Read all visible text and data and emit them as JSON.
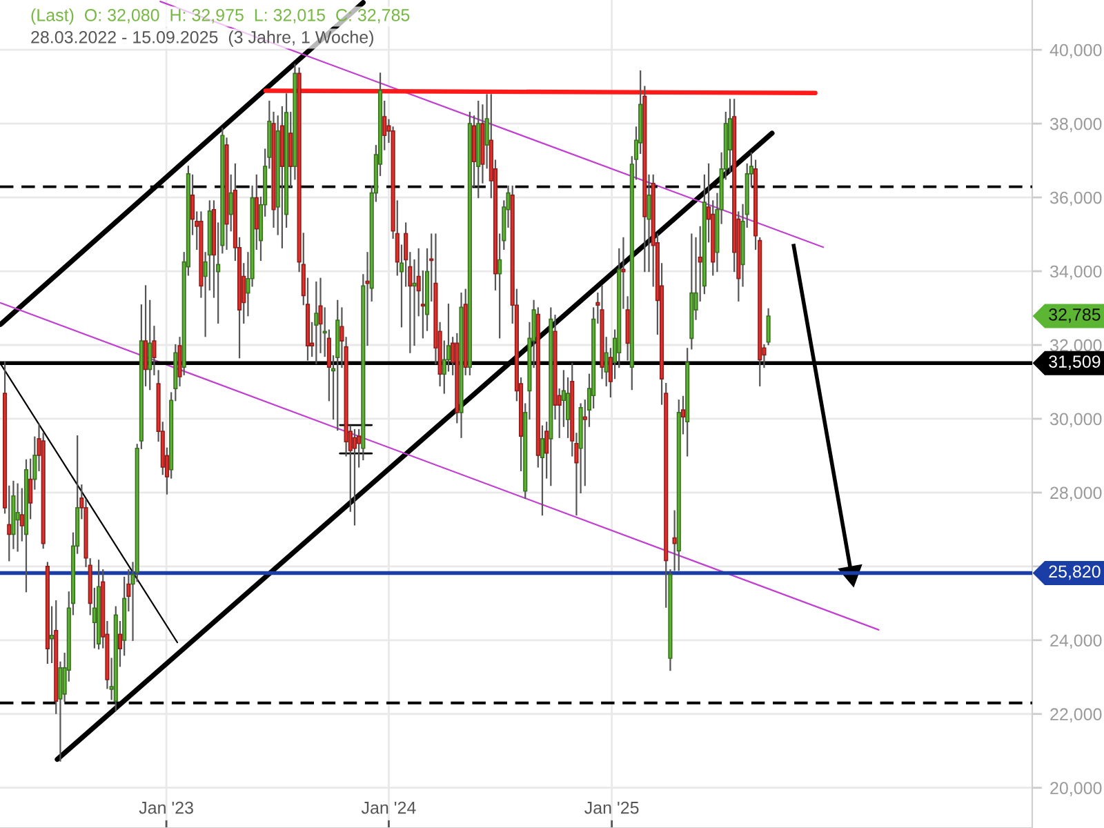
{
  "chart_data": {
    "type": "candlestick",
    "title": "(Last)  O: 32,080  H: 32,975  L: 32,015  C: 32,785",
    "subtitle": "28.03.2022 - 15.09.2025  (3 Jahre, 1 Woche)",
    "x": [
      "2022-04-11",
      "2022-04-18",
      "2022-04-25",
      "2022-05-02",
      "2022-05-09",
      "2022-05-16",
      "2022-05-23",
      "2022-05-30",
      "2022-06-06",
      "2022-06-13",
      "2022-06-20",
      "2022-06-27",
      "2022-07-04",
      "2022-07-11",
      "2022-07-18",
      "2022-07-25",
      "2022-08-01",
      "2022-08-08",
      "2022-08-15",
      "2022-08-22",
      "2022-08-29",
      "2022-09-05",
      "2022-09-12",
      "2022-09-19",
      "2022-09-26",
      "2022-10-03",
      "2022-10-10",
      "2022-10-17",
      "2022-10-24",
      "2022-10-31",
      "2022-11-07",
      "2022-11-14",
      "2022-11-21",
      "2022-11-28",
      "2022-12-05",
      "2022-12-12",
      "2022-12-19",
      "2022-12-26",
      "2023-01-02",
      "2023-01-09",
      "2023-01-16",
      "2023-01-23",
      "2023-01-30",
      "2023-02-06",
      "2023-02-13",
      "2023-02-20",
      "2023-02-27",
      "2023-03-06",
      "2023-03-13",
      "2023-03-20",
      "2023-03-27",
      "2023-04-03",
      "2023-04-10",
      "2023-04-17",
      "2023-04-24",
      "2023-05-01",
      "2023-05-08",
      "2023-05-15",
      "2023-05-22",
      "2023-05-29",
      "2023-06-05",
      "2023-06-12",
      "2023-06-19",
      "2023-06-26",
      "2023-07-03",
      "2023-07-10",
      "2023-07-17",
      "2023-07-24",
      "2023-07-31",
      "2023-08-07",
      "2023-08-14",
      "2023-08-21",
      "2023-08-28",
      "2023-09-04",
      "2023-09-11",
      "2023-09-18",
      "2023-09-25",
      "2023-10-02",
      "2023-10-09",
      "2023-10-16",
      "2023-10-23",
      "2023-10-30",
      "2023-11-06",
      "2023-11-13",
      "2023-11-20",
      "2023-11-27",
      "2023-12-04",
      "2023-12-11",
      "2023-12-18",
      "2023-12-25",
      "2024-01-01",
      "2024-01-08",
      "2024-01-15",
      "2024-01-22",
      "2024-01-29",
      "2024-02-05",
      "2024-02-12",
      "2024-02-19",
      "2024-02-26",
      "2024-03-04",
      "2024-03-11",
      "2024-03-18",
      "2024-03-25",
      "2024-04-01",
      "2024-04-08",
      "2024-04-15",
      "2024-04-22",
      "2024-04-29",
      "2024-05-06",
      "2024-05-13",
      "2024-05-20",
      "2024-05-27",
      "2024-06-03",
      "2024-06-10",
      "2024-06-17",
      "2024-06-24",
      "2024-07-01",
      "2024-07-08",
      "2024-07-15",
      "2024-07-22",
      "2024-07-29",
      "2024-08-05",
      "2024-08-12",
      "2024-08-19",
      "2024-08-26",
      "2024-09-02",
      "2024-09-09",
      "2024-09-16",
      "2024-09-23",
      "2024-09-30",
      "2024-10-07",
      "2024-10-14",
      "2024-10-21",
      "2024-10-28",
      "2024-11-04",
      "2024-11-11",
      "2024-11-18",
      "2024-11-25",
      "2024-12-02",
      "2024-12-09",
      "2024-12-16",
      "2024-12-23",
      "2024-12-30",
      "2025-01-06",
      "2025-01-13",
      "2025-01-20",
      "2025-01-27",
      "2025-02-03",
      "2025-02-10",
      "2025-02-17",
      "2025-02-24",
      "2025-03-03",
      "2025-03-10",
      "2025-03-17",
      "2025-03-24",
      "2025-03-31",
      "2025-04-07",
      "2025-04-14",
      "2025-04-21",
      "2025-04-28",
      "2025-05-05",
      "2025-05-12",
      "2025-05-19",
      "2025-05-26",
      "2025-06-02",
      "2025-06-09",
      "2025-06-16",
      "2025-06-23",
      "2025-06-30",
      "2025-07-07",
      "2025-07-14",
      "2025-07-21",
      "2025-07-28",
      "2025-08-04",
      "2025-08-11",
      "2025-08-18",
      "2025-08-25",
      "2025-09-01",
      "2025-09-08",
      "2025-09-15"
    ],
    "ohlc": [
      [
        30690,
        31530,
        27450,
        27590
      ],
      [
        27130,
        28170,
        26160,
        26870
      ],
      [
        26870,
        28300,
        26490,
        27910
      ],
      [
        27260,
        28230,
        26420,
        27460
      ],
      [
        27400,
        28100,
        26700,
        27100
      ],
      [
        26870,
        28880,
        25320,
        28620
      ],
      [
        28360,
        28900,
        27300,
        27720
      ],
      [
        28360,
        29500,
        28100,
        29010
      ],
      [
        29460,
        29850,
        28600,
        29010
      ],
      [
        29400,
        29600,
        26500,
        26620
      ],
      [
        26000,
        26100,
        23380,
        23770
      ],
      [
        24040,
        24900,
        23400,
        24130
      ],
      [
        24260,
        25060,
        22020,
        22350
      ],
      [
        22410,
        23400,
        20730,
        23250
      ],
      [
        22540,
        23640,
        22350,
        23250
      ],
      [
        23190,
        25300,
        22900,
        24870
      ],
      [
        25000,
        26900,
        24700,
        26550
      ],
      [
        26550,
        29530,
        26360,
        27590
      ],
      [
        27850,
        28200,
        27300,
        27590
      ],
      [
        27590,
        27800,
        26000,
        26230
      ],
      [
        26030,
        26200,
        24700,
        25000
      ],
      [
        24480,
        25400,
        23800,
        24870
      ],
      [
        23900,
        26160,
        23770,
        25450
      ],
      [
        25580,
        25900,
        23800,
        24090
      ],
      [
        24160,
        24500,
        22700,
        22930
      ],
      [
        22670,
        23500,
        22400,
        22740
      ],
      [
        22350,
        24900,
        22100,
        24680
      ],
      [
        24160,
        24500,
        23300,
        23770
      ],
      [
        24000,
        25700,
        23600,
        25130
      ],
      [
        25520,
        25900,
        24800,
        25190
      ],
      [
        25520,
        26100,
        24000,
        25780
      ],
      [
        25840,
        29300,
        25600,
        29200
      ],
      [
        29400,
        33080,
        29200,
        32110
      ],
      [
        32110,
        33600,
        30900,
        31340
      ],
      [
        31340,
        33200,
        30800,
        32050
      ],
      [
        32110,
        32500,
        31200,
        31660
      ],
      [
        30950,
        31300,
        29400,
        29660
      ],
      [
        29660,
        29900,
        28500,
        28690
      ],
      [
        29000,
        29200,
        27970,
        28430
      ],
      [
        28620,
        30700,
        28400,
        30500
      ],
      [
        30820,
        32000,
        30500,
        31790
      ],
      [
        31980,
        32200,
        30900,
        31140
      ],
      [
        31400,
        34500,
        31200,
        34250
      ],
      [
        34120,
        36840,
        33900,
        36640
      ],
      [
        36060,
        36600,
        35000,
        35410
      ],
      [
        35350,
        35600,
        34600,
        35220
      ],
      [
        35350,
        35600,
        33300,
        33600
      ],
      [
        33860,
        34500,
        32240,
        34250
      ],
      [
        34440,
        35900,
        33500,
        35630
      ],
      [
        35670,
        35900,
        33300,
        34440
      ],
      [
        33990,
        35300,
        32600,
        34180
      ],
      [
        34700,
        37870,
        34500,
        37680
      ],
      [
        37420,
        37600,
        34600,
        35280
      ],
      [
        35540,
        36600,
        35100,
        36120
      ],
      [
        36190,
        36900,
        34300,
        34640
      ],
      [
        34640,
        34900,
        31660,
        32950
      ],
      [
        33860,
        34200,
        32600,
        33150
      ],
      [
        33410,
        34500,
        32800,
        33800
      ],
      [
        33800,
        36300,
        33600,
        35990
      ],
      [
        35990,
        36600,
        34600,
        35150
      ],
      [
        34830,
        36000,
        34300,
        35800
      ],
      [
        35800,
        37300,
        35500,
        36840
      ],
      [
        37090,
        38600,
        36800,
        38060
      ],
      [
        38000,
        38300,
        35200,
        35670
      ],
      [
        35740,
        38200,
        35000,
        37800
      ],
      [
        37940,
        38450,
        34640,
        36840
      ],
      [
        35540,
        38800,
        35200,
        38300
      ],
      [
        37740,
        38300,
        36300,
        36840
      ],
      [
        36840,
        39600,
        36500,
        39360
      ],
      [
        39360,
        39500,
        34000,
        34250
      ],
      [
        34180,
        35020,
        33100,
        33340
      ],
      [
        33100,
        33800,
        31600,
        31980
      ],
      [
        32050,
        32600,
        31700,
        31980
      ],
      [
        32540,
        33700,
        31500,
        32860
      ],
      [
        33060,
        33800,
        31800,
        32570
      ],
      [
        32330,
        33000,
        31700,
        32370
      ],
      [
        32180,
        32400,
        30500,
        31400
      ],
      [
        31300,
        31700,
        30000,
        31360
      ],
      [
        31660,
        33200,
        29700,
        32670
      ],
      [
        32500,
        33000,
        31400,
        32110
      ],
      [
        31950,
        32200,
        29000,
        29380
      ],
      [
        29660,
        29800,
        27500,
        29140
      ],
      [
        29490,
        29700,
        27130,
        29200
      ],
      [
        29530,
        29700,
        28700,
        29330
      ],
      [
        29200,
        33900,
        28900,
        33600
      ],
      [
        33730,
        34500,
        32000,
        33670
      ],
      [
        33540,
        36300,
        33200,
        36120
      ],
      [
        36120,
        37400,
        35900,
        37160
      ],
      [
        36900,
        39360,
        36600,
        38900
      ],
      [
        38190,
        38600,
        37300,
        37680
      ],
      [
        37940,
        38100,
        37500,
        37800
      ],
      [
        37800,
        37900,
        34900,
        35090
      ],
      [
        35020,
        35900,
        33900,
        34250
      ],
      [
        33990,
        34700,
        32500,
        34220
      ],
      [
        35020,
        35300,
        33600,
        34310
      ],
      [
        34120,
        34500,
        31800,
        33600
      ],
      [
        33600,
        34300,
        32000,
        33670
      ],
      [
        33860,
        34600,
        32800,
        33470
      ],
      [
        33100,
        34000,
        32200,
        33060
      ],
      [
        32830,
        34600,
        32400,
        33990
      ],
      [
        34330,
        35000,
        33200,
        34290
      ],
      [
        33670,
        35000,
        31500,
        31920
      ],
      [
        32370,
        32600,
        30900,
        31210
      ],
      [
        31210,
        32100,
        30700,
        31600
      ],
      [
        31600,
        33100,
        31300,
        31980
      ],
      [
        32050,
        32200,
        31200,
        31530
      ],
      [
        32050,
        32300,
        29900,
        30170
      ],
      [
        30170,
        33400,
        29500,
        33020
      ],
      [
        33100,
        33500,
        31200,
        31400
      ],
      [
        31400,
        38300,
        31200,
        38000
      ],
      [
        37940,
        38200,
        36300,
        36970
      ],
      [
        36840,
        38600,
        36000,
        38000
      ],
      [
        38000,
        38500,
        36400,
        36900
      ],
      [
        37420,
        38780,
        36800,
        38130
      ],
      [
        37550,
        38780,
        36000,
        36450
      ],
      [
        36770,
        37000,
        33500,
        33930
      ],
      [
        33930,
        35000,
        32200,
        34310
      ],
      [
        34830,
        35900,
        34600,
        35740
      ],
      [
        35670,
        36300,
        35200,
        36120
      ],
      [
        36060,
        36300,
        32600,
        33080
      ],
      [
        33080,
        33500,
        30500,
        30760
      ],
      [
        30950,
        31100,
        28600,
        29530
      ],
      [
        28040,
        30400,
        27850,
        30170
      ],
      [
        30760,
        32600,
        30000,
        32180
      ],
      [
        32110,
        33200,
        31400,
        32950
      ],
      [
        32830,
        33000,
        28700,
        29010
      ],
      [
        28950,
        29800,
        27400,
        29460
      ],
      [
        29660,
        29900,
        28400,
        29070
      ],
      [
        29460,
        33000,
        28200,
        32700
      ],
      [
        32370,
        32800,
        30000,
        30370
      ],
      [
        30630,
        30800,
        29500,
        30370
      ],
      [
        30500,
        31300,
        29800,
        30760
      ],
      [
        29980,
        31100,
        29500,
        30690
      ],
      [
        31010,
        31500,
        29000,
        29400
      ],
      [
        29330,
        29600,
        27400,
        28810
      ],
      [
        29200,
        30400,
        28000,
        30300
      ],
      [
        30050,
        30500,
        28200,
        29980
      ],
      [
        30240,
        31200,
        29800,
        30820
      ],
      [
        30630,
        33000,
        30300,
        32700
      ],
      [
        33150,
        33400,
        32600,
        33080
      ],
      [
        32950,
        33600,
        31100,
        31400
      ],
      [
        31270,
        32200,
        30900,
        31790
      ],
      [
        31660,
        31900,
        30600,
        31010
      ],
      [
        31530,
        32400,
        31100,
        32180
      ],
      [
        31790,
        34600,
        31400,
        34050
      ],
      [
        34050,
        34900,
        33000,
        33990
      ],
      [
        32950,
        33300,
        31600,
        32050
      ],
      [
        31400,
        37100,
        30800,
        36900
      ],
      [
        37030,
        37900,
        36500,
        37550
      ],
      [
        37480,
        39420,
        37200,
        38520
      ],
      [
        38740,
        39000,
        34000,
        35480
      ],
      [
        35410,
        36600,
        34000,
        36060
      ],
      [
        36380,
        36600,
        33600,
        34700
      ],
      [
        34770,
        35000,
        32300,
        33210
      ],
      [
        33600,
        34200,
        30400,
        31080
      ],
      [
        30690,
        30950,
        24900,
        26160
      ],
      [
        23510,
        25900,
        23190,
        25780
      ],
      [
        26770,
        27500,
        25900,
        26620
      ],
      [
        26420,
        30500,
        25900,
        30170
      ],
      [
        30240,
        30600,
        29600,
        30050
      ],
      [
        29920,
        31900,
        29000,
        31530
      ],
      [
        32180,
        35000,
        31900,
        33410
      ],
      [
        32950,
        34900,
        32700,
        33410
      ],
      [
        34380,
        35200,
        33200,
        34250
      ],
      [
        33600,
        36600,
        33400,
        35870
      ],
      [
        35740,
        36900,
        34800,
        35410
      ],
      [
        35540,
        35900,
        33900,
        34250
      ],
      [
        34510,
        36100,
        34000,
        35670
      ],
      [
        35670,
        37200,
        35300,
        36770
      ],
      [
        36770,
        38300,
        36500,
        38000
      ],
      [
        37290,
        38650,
        36700,
        38130
      ],
      [
        38190,
        38650,
        34000,
        34510
      ],
      [
        35410,
        35600,
        33200,
        33800
      ],
      [
        34180,
        35800,
        33600,
        35350
      ],
      [
        35540,
        36900,
        35200,
        36640
      ],
      [
        36640,
        37200,
        36300,
        36840
      ],
      [
        36770,
        37000,
        34600,
        34960
      ],
      [
        34830,
        34900,
        30900,
        31600
      ],
      [
        31920,
        32000,
        31400,
        31730
      ],
      [
        32080,
        32975,
        32015,
        32785
      ]
    ],
    "colors": [
      "#e3312d",
      "#e3312d",
      "#5db534",
      "#5db534",
      "#e3312d",
      "#5db534",
      "#e3312d",
      "#5db534",
      "#e3312d",
      "#e3312d",
      "#e3312d",
      "#5db534",
      "#e3312d",
      "#5db534",
      "#5db534",
      "#5db534",
      "#5db534",
      "#5db534",
      "#e3312d",
      "#e3312d",
      "#e3312d",
      "#5db534",
      "#5db534",
      "#e3312d",
      "#e3312d",
      "#5db534",
      "#5db534",
      "#e3312d",
      "#5db534",
      "#e3312d",
      "#5db534",
      "#5db534",
      "#5db534",
      "#e3312d",
      "#5db534",
      "#e3312d",
      "#e3312d",
      "#e3312d",
      "#e3312d",
      "#5db534",
      "#5db534",
      "#e3312d",
      "#5db534",
      "#5db534",
      "#e3312d",
      "#e3312d",
      "#e3312d",
      "#5db534",
      "#5db534",
      "#e3312d",
      "#5db534",
      "#5db534",
      "#e3312d",
      "#5db534",
      "#e3312d",
      "#e3312d",
      "#e3312d",
      "#5db534",
      "#5db534",
      "#e3312d",
      "#5db534",
      "#5db534",
      "#5db534",
      "#e3312d",
      "#5db534",
      "#e3312d",
      "#5db534",
      "#e3312d",
      "#5db534",
      "#e3312d",
      "#e3312d",
      "#e3312d",
      "#e3312d",
      "#5db534",
      "#e3312d",
      "#5db534",
      "#e3312d",
      "#5db534",
      "#5db534",
      "#e3312d",
      "#e3312d",
      "#e3312d",
      "#e3312d",
      "#e3312d",
      "#5db534",
      "#e3312d",
      "#5db534",
      "#5db534",
      "#5db534",
      "#e3312d",
      "#e3312d",
      "#e3312d",
      "#e3312d",
      "#5db534",
      "#e3312d",
      "#e3312d",
      "#5db534",
      "#e3312d",
      "#e3312d",
      "#5db534",
      "#e3312d",
      "#e3312d",
      "#e3312d",
      "#5db534",
      "#5db534",
      "#e3312d",
      "#e3312d",
      "#5db534",
      "#e3312d",
      "#5db534",
      "#e3312d",
      "#5db534",
      "#e3312d",
      "#5db534",
      "#e3312d",
      "#e3312d",
      "#5db534",
      "#5db534",
      "#5db534",
      "#e3312d",
      "#e3312d",
      "#e3312d",
      "#5db534",
      "#5db534",
      "#5db534",
      "#e3312d",
      "#5db534",
      "#e3312d",
      "#5db534",
      "#e3312d",
      "#e3312d",
      "#5db534",
      "#5db534",
      "#e3312d",
      "#e3312d",
      "#5db534",
      "#e3312d",
      "#5db534",
      "#5db534",
      "#e3312d",
      "#e3312d",
      "#5db534",
      "#e3312d",
      "#5db534",
      "#5db534",
      "#e3312d",
      "#e3312d",
      "#5db534",
      "#5db534",
      "#5db534",
      "#e3312d",
      "#5db534",
      "#e3312d",
      "#e3312d",
      "#e3312d",
      "#e3312d",
      "#5db534",
      "#e3312d",
      "#5db534",
      "#e3312d",
      "#5db534",
      "#5db534",
      "#5db534",
      "#e3312d",
      "#5db534",
      "#e3312d",
      "#e3312d",
      "#5db534",
      "#5db534",
      "#5db534",
      "#5db534",
      "#e3312d",
      "#e3312d",
      "#5db534",
      "#5db534",
      "#5db534",
      "#e3312d",
      "#e3312d",
      "#e3312d",
      "#5db534"
    ],
    "series": [
      {
        "type": "line",
        "color": "#000000",
        "x": [
          "2022-04-04",
          "2023-11-20"
        ],
        "values": [
          32560,
          41280
        ]
      },
      {
        "type": "line",
        "color": "#000000",
        "x": [
          "2022-07-06",
          "2025-09-21"
        ],
        "values": [
          20770,
          37740
        ]
      },
      {
        "type": "line",
        "color": "#c040d0",
        "x": [
          "2022-12-22",
          "2025-12-14"
        ],
        "values": [
          41310,
          34650
        ]
      },
      {
        "type": "line",
        "color": "#c040d0",
        "x": [
          "2022-04-04",
          "2026-03-15"
        ],
        "values": [
          33140,
          24280
        ]
      },
      {
        "type": "line",
        "color": "#000000",
        "x": [
          "2022-04-04",
          "2023-01-19"
        ],
        "values": [
          31490,
          23940
        ]
      },
      {
        "type": "line",
        "color": "#ff1a1a",
        "x": [
          "2023-06-13",
          "2025-12-01"
        ],
        "values": [
          38890,
          38830
        ]
      },
      {
        "type": "line",
        "color": "#000000",
        "x": [
          "2023-10-13",
          "2023-12-04"
        ],
        "values": [
          29830,
          29830
        ]
      },
      {
        "type": "line",
        "color": "#000000",
        "x": [
          "2023-10-13",
          "2023-12-04"
        ],
        "values": [
          29060,
          29060
        ]
      },
      {
        "type": "line",
        "color": "#000000",
        "marker": "triangle",
        "x": [
          "2025-10-26",
          "2026-01-29"
        ],
        "values": [
          34740,
          25810
        ]
      }
    ],
    "xlim": [
      "2022-04-03",
      "2026-11-22"
    ],
    "xticks": [
      {
        "value": "2023-01-01",
        "label": "Jan '23"
      },
      {
        "value": "2024-01-01",
        "label": "Jan '24"
      },
      {
        "value": "2025-01-01",
        "label": "Jan '25"
      }
    ],
    "ylim": [
      18910,
      41350
    ],
    "yticks": [
      {
        "value": 20000,
        "label": "20,000"
      },
      {
        "value": 22000,
        "label": "22,000"
      },
      {
        "value": 24000,
        "label": "24,000"
      },
      {
        "value": 26000,
        "label": null
      },
      {
        "value": 28000,
        "label": "28,000"
      },
      {
        "value": 30000,
        "label": "30,000"
      },
      {
        "value": 32000,
        "label": "32,000"
      },
      {
        "value": 34000,
        "label": "34,000"
      },
      {
        "value": 36000,
        "label": "36,000"
      },
      {
        "value": 38000,
        "label": "38,000"
      },
      {
        "value": 40000,
        "label": "40,000"
      }
    ],
    "grid": true,
    "ref_lines": [
      {
        "axis": "y",
        "value": 36290,
        "color": "#000000",
        "line_style": "dashed"
      },
      {
        "axis": "y",
        "value": 22300,
        "color": "#000000",
        "line_style": "dashed"
      },
      {
        "axis": "y",
        "value": 31509,
        "label": "31,509",
        "color": "#000000"
      },
      {
        "axis": "y",
        "value": 25820,
        "label": "25,820",
        "color": "#1a3ea6"
      }
    ],
    "annotations": [
      "32,785"
    ]
  }
}
